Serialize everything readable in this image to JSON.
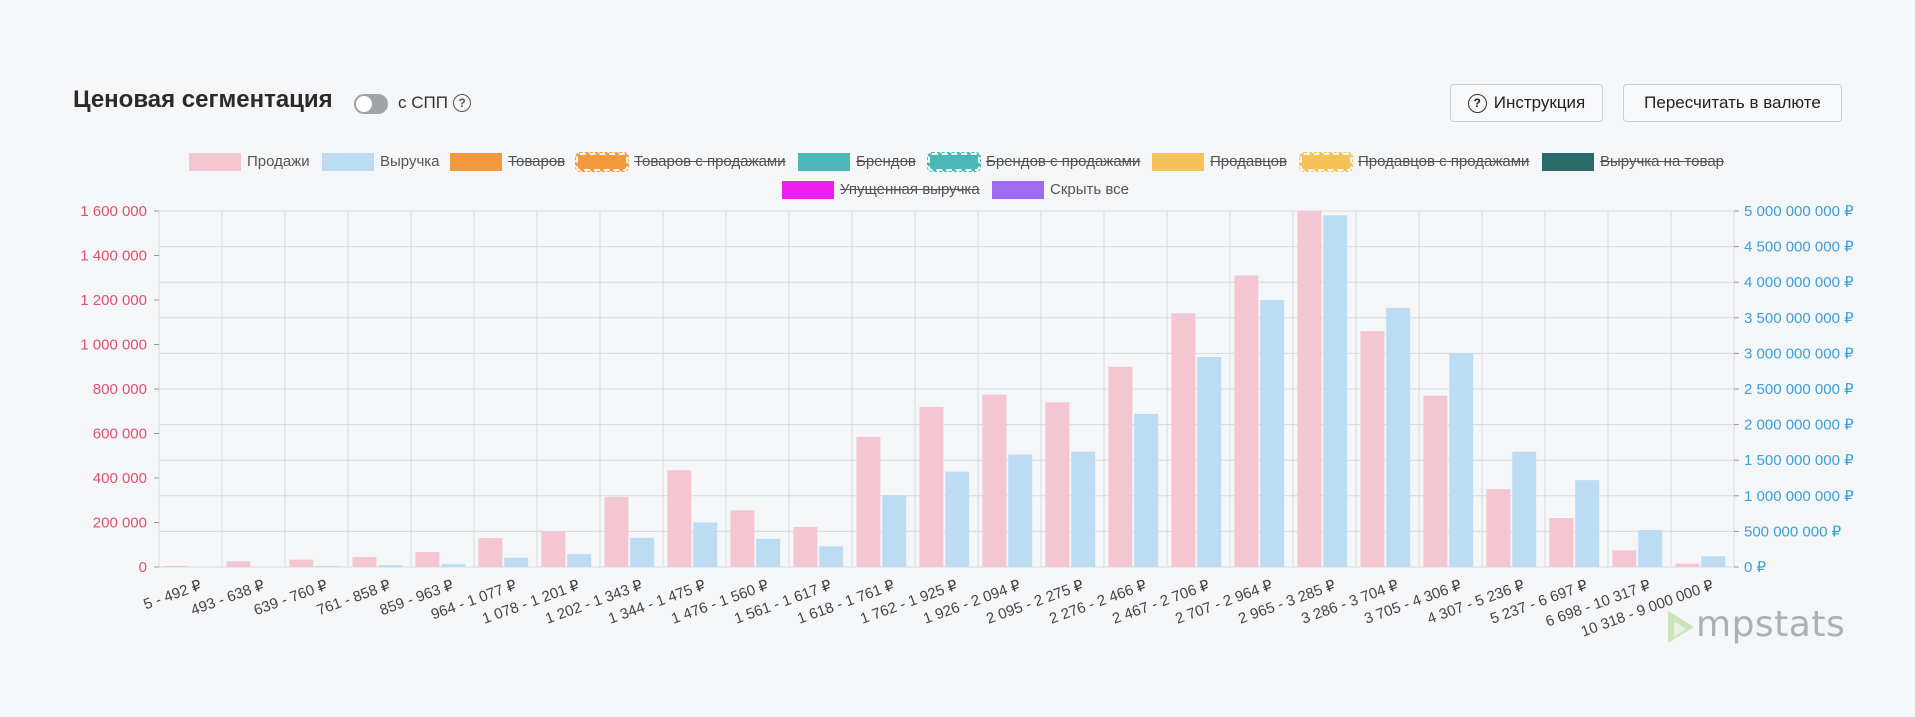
{
  "header": {
    "title": "Ценовая сегментация",
    "toggle_label": "с СПП",
    "help_glyph": "?",
    "instruction_label": "Инструкция",
    "convert_label": "Пересчитать в валюте"
  },
  "legend": [
    {
      "label": "Продажи",
      "color": "#f4c6d1",
      "active": true,
      "style": "solid"
    },
    {
      "label": "Выручка",
      "color": "#bcdcf3",
      "active": true,
      "style": "solid"
    },
    {
      "label": "Товаров",
      "color": "#f39a3e",
      "active": false,
      "style": "solid"
    },
    {
      "label": "Товаров с продажами",
      "color": "#f39a3e",
      "active": false,
      "style": "dashed"
    },
    {
      "label": "Брендов",
      "color": "#4bb8b8",
      "active": false,
      "style": "solid"
    },
    {
      "label": "Брендов с продажами",
      "color": "#4bb8b8",
      "active": false,
      "style": "dashed"
    },
    {
      "label": "Продавцов",
      "color": "#f3c35a",
      "active": false,
      "style": "solid"
    },
    {
      "label": "Продавцов с продажами",
      "color": "#f3c35a",
      "active": false,
      "style": "dashed"
    },
    {
      "label": "Выручка на товар",
      "color": "#2a6a68",
      "active": false,
      "style": "solid"
    },
    {
      "label": "Упущенная выручка",
      "color": "#f11cf0",
      "active": false,
      "style": "solid"
    },
    {
      "label": "Скрыть все",
      "color": "#9f6bf3",
      "active": true,
      "style": "solid"
    }
  ],
  "logo_text": "mpstats",
  "chart_data": {
    "type": "bar",
    "categories": [
      "5 - 492 ₽",
      "493 - 638 ₽",
      "639 - 760 ₽",
      "761 - 858 ₽",
      "859 - 963 ₽",
      "964 - 1 077 ₽",
      "1 078 - 1 201 ₽",
      "1 202 - 1 343 ₽",
      "1 344 - 1 475 ₽",
      "1 476 - 1 560 ₽",
      "1 561 - 1 617 ₽",
      "1 618 - 1 761 ₽",
      "1 762 - 1 925 ₽",
      "1 926 - 2 094 ₽",
      "2 095 - 2 275 ₽",
      "2 276 - 2 466 ₽",
      "2 467 - 2 706 ₽",
      "2 707 - 2 964 ₽",
      "2 965 - 3 285 ₽",
      "3 286 - 3 704 ₽",
      "3 705 - 4 306 ₽",
      "4 307 - 5 236 ₽",
      "5 237 - 6 697 ₽",
      "6 698 - 10 317 ₽",
      "10 318 - 9 000 000 ₽"
    ],
    "series": [
      {
        "name": "Продажи",
        "axis": "left",
        "color": "#f4c6d1",
        "values": [
          5000,
          25000,
          33000,
          45000,
          67000,
          130000,
          160000,
          315000,
          435000,
          255000,
          180000,
          585000,
          720000,
          775000,
          740000,
          900000,
          1140000,
          1310000,
          1600000,
          1060000,
          770000,
          350000,
          220000,
          75000,
          15000
        ]
      },
      {
        "name": "Выручка",
        "axis": "right",
        "color": "#bcdcf3",
        "values": [
          0,
          0,
          15000000,
          25000000,
          40000000,
          130000000,
          180000000,
          410000000,
          625000000,
          395000000,
          290000000,
          1010000000,
          1340000000,
          1580000000,
          1620000000,
          2150000000,
          2950000000,
          3750000000,
          4940000000,
          3640000000,
          3000000000,
          1620000000,
          1220000000,
          520000000,
          150000000
        ]
      }
    ],
    "y_left": {
      "min": 0,
      "max": 1600000,
      "step": 200000,
      "ticks": [
        "0",
        "200 000",
        "400 000",
        "600 000",
        "800 000",
        "1 000 000",
        "1 200 000",
        "1 400 000",
        "1 600 000"
      ],
      "color": "#e0506f"
    },
    "y_right": {
      "min": 0,
      "max": 5000000000,
      "step": 500000000,
      "ticks": [
        "0 ₽",
        "500 000 000 ₽",
        "1 000 000 000 ₽",
        "1 500 000 000 ₽",
        "2 000 000 000 ₽",
        "2 500 000 000 ₽",
        "3 000 000 000 ₽",
        "3 500 000 000 ₽",
        "4 000 000 000 ₽",
        "4 500 000 000 ₽",
        "5 000 000 000 ₽"
      ],
      "color": "#3aa0d8"
    },
    "grid": true
  }
}
